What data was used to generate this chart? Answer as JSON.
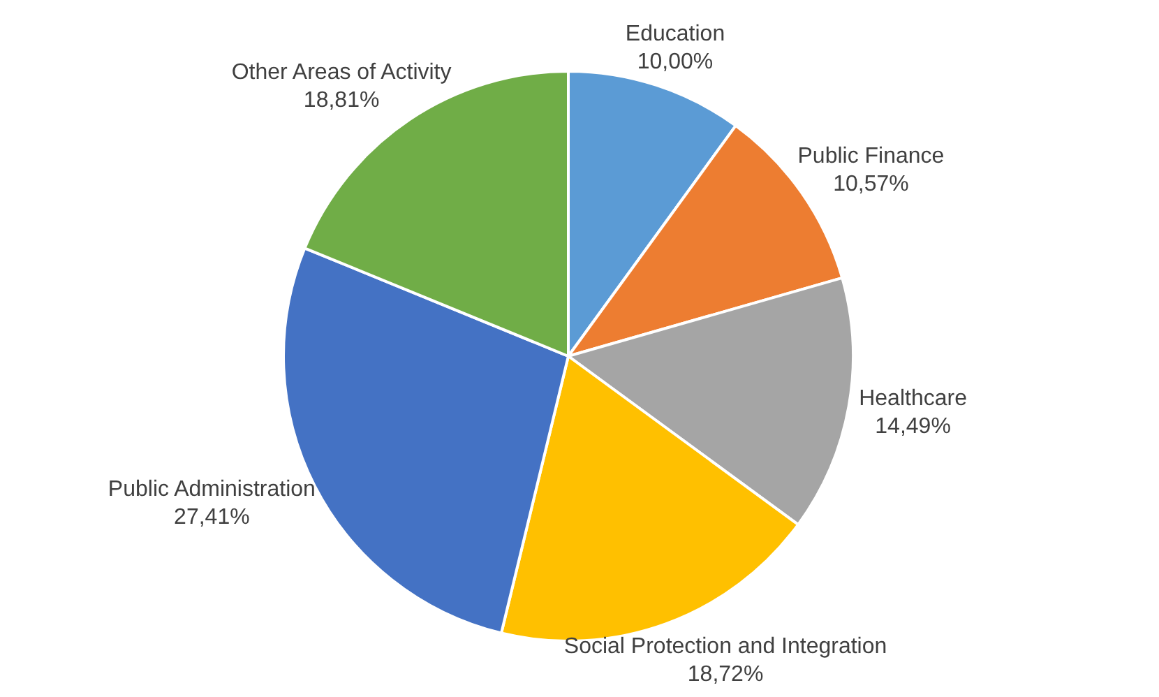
{
  "chart_data": {
    "type": "pie",
    "categories": [
      "Education",
      "Public Finance",
      "Healthcare",
      "Social Protection and Integration",
      "Public Administration",
      "Other Areas of Activity"
    ],
    "values": [
      10.0,
      10.57,
      14.49,
      18.72,
      27.41,
      18.81
    ],
    "value_labels": [
      "10,00%",
      "10,57%",
      "14,49%",
      "18,72%",
      "27,41%",
      "18,81%"
    ],
    "colors": [
      "#5b9bd5",
      "#ed7d31",
      "#a5a5a5",
      "#ffc000",
      "#4472c4",
      "#70ad47"
    ],
    "legend": false
  }
}
